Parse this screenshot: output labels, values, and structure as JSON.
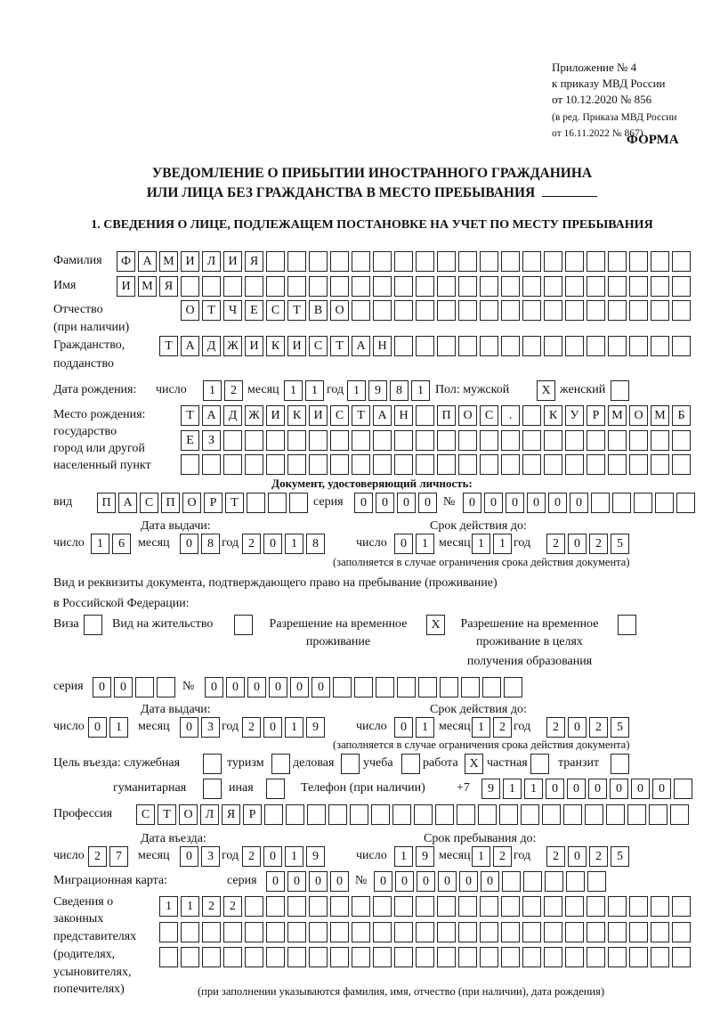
{
  "header": {
    "appendix": "Приложение № 4",
    "order": "к приказу МВД России",
    "order_date": "от 10.12.2020 № 856",
    "revision_1": "(в ред. Приказа МВД России",
    "revision_2": "от 16.11.2022 № 867)",
    "form_label": "ФОРМА",
    "title_1": "УВЕДОМЛЕНИЕ О ПРИБЫТИИ ИНОСТРАННОГО ГРАЖДАНИНА",
    "title_2": "ИЛИ ЛИЦА БЕЗ ГРАЖДАНСТВА В МЕСТО ПРЕБЫВАНИЯ",
    "section_1": "1. СВЕДЕНИЯ О ЛИЦЕ, ПОДЛЕЖАЩЕМ ПОСТАНОВКЕ НА УЧЕТ ПО МЕСТУ ПРЕБЫВАНИЯ"
  },
  "labels": {
    "surname": "Фамилия",
    "name": "Имя",
    "patronymic_1": "Отчество",
    "patronymic_2": "(при наличии)",
    "citizenship_1": "Гражданство,",
    "citizenship_2": "подданство",
    "birth_date": "Дата рождения:",
    "day": "число",
    "month": "месяц",
    "year": "год",
    "sex": "Пол: мужской",
    "female": "женский",
    "birthplace_1": "Место рождения:",
    "birthplace_2": "государство",
    "birthplace_3": "город или другой",
    "birthplace_4": "населенный пункт",
    "id_doc": "Документ, удостоверяющий личность:",
    "kind": "вид",
    "series": "серия",
    "number": "№",
    "issue_date": "Дата выдачи:",
    "valid_until": "Срок действия до:",
    "validity_note": "(заполняется в случае ограничения срока действия документа)",
    "residence_doc_1": "Вид и реквизиты документа, подтверждающего право на пребывание (проживание)",
    "residence_doc_2": "в Российской Федерации:",
    "visa": "Виза",
    "residence_permit": "Вид на жительство",
    "temp_permit_1": "Разрешение на временное",
    "temp_permit_2": "проживание",
    "temp_edu_1": "Разрешение на временное",
    "temp_edu_2": "проживание в целях",
    "temp_edu_3": "получения образования",
    "purpose": "Цель въезда: служебная",
    "tourism": "туризм",
    "business": "деловая",
    "study": "учеба",
    "work": "работа",
    "private": "частная",
    "transit": "транзит",
    "humanitarian": "гуманитарная",
    "other": "иная",
    "phone": "Телефон (при наличии)",
    "phone_prefix": "+7",
    "profession": "Профессия",
    "entry_date": "Дата въезда:",
    "stay_until": "Срок пребывания до:",
    "migration_card": "Миграционная карта:",
    "reps_1": "Сведения о",
    "reps_2": "законных",
    "reps_3": "представителях",
    "reps_4": "(родителях,",
    "reps_5": "усыновителях,",
    "reps_6": "попечителях)",
    "reps_note": "(при заполнении указываются фамилия, имя, отчество (при наличии), дата рождения)"
  },
  "person": {
    "surname": "ФАМИЛИЯ",
    "name": "ИМЯ",
    "patronymic": "ОТЧЕСТВО",
    "citizenship": "ТАДЖИКИСТАН",
    "birth_day": "12",
    "birth_month": "11",
    "birth_year": "1981",
    "sex_male": "X",
    "sex_female": "",
    "birthplace_1": "ТАДЖИКИСТАН ПОС. КУРМОМБ",
    "birthplace_2": "ЕЗ",
    "birthplace_3": ""
  },
  "id_document": {
    "kind": "ПАСПОРТ",
    "series": "0000",
    "number": "000000",
    "issue_day": "16",
    "issue_month": "08",
    "issue_year": "2018",
    "valid_day": "01",
    "valid_month": "11",
    "valid_year": "2025"
  },
  "residence_document": {
    "visa": "",
    "residence_permit": "",
    "temp_permit": "X",
    "temp_edu": "",
    "series": "00",
    "number": "000000",
    "issue_day": "01",
    "issue_month": "03",
    "issue_year": "2019",
    "valid_day": "01",
    "valid_month": "12",
    "valid_year": "2025"
  },
  "purpose": {
    "official": "",
    "tourism": "",
    "business": "",
    "study": "",
    "work": "X",
    "private": "",
    "transit": "",
    "humanitarian": "",
    "other": ""
  },
  "phone": "911000000",
  "profession": "СТОЛЯР",
  "stay": {
    "entry_day": "27",
    "entry_month": "03",
    "entry_year": "2019",
    "until_day": "19",
    "until_month": "12",
    "until_year": "2025"
  },
  "migration_card": {
    "series": "0000",
    "number": "000000"
  },
  "representatives": {
    "line_1": "1122",
    "line_2": "",
    "line_3": ""
  }
}
